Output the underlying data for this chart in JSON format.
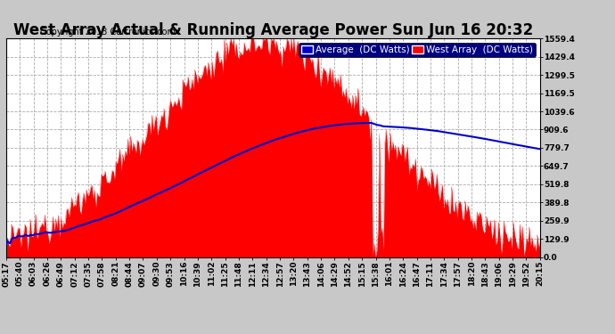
{
  "title": "West Array Actual & Running Average Power Sun Jun 16 20:32",
  "copyright": "Copyright 2013 Cartronics.com",
  "y_ticks": [
    0.0,
    129.9,
    259.9,
    389.8,
    519.8,
    649.7,
    779.7,
    909.6,
    1039.6,
    1169.5,
    1299.5,
    1429.4,
    1559.4
  ],
  "y_max": 1559.4,
  "y_min": 0.0,
  "x_labels": [
    "05:17",
    "05:40",
    "06:03",
    "06:26",
    "06:49",
    "07:12",
    "07:35",
    "07:58",
    "08:21",
    "08:44",
    "09:07",
    "09:30",
    "09:53",
    "10:16",
    "10:39",
    "11:02",
    "11:25",
    "11:48",
    "12:11",
    "12:34",
    "12:57",
    "13:20",
    "13:43",
    "14:06",
    "14:29",
    "14:52",
    "15:15",
    "15:38",
    "16:01",
    "16:24",
    "16:47",
    "17:11",
    "17:34",
    "17:57",
    "18:20",
    "18:43",
    "19:06",
    "19:29",
    "19:52",
    "20:15"
  ],
  "figure_bg_color": "#c8c8c8",
  "plot_bg_color": "#ffffff",
  "grid_color": "#aaaaaa",
  "bar_color": "#ff0000",
  "avg_color": "#0000cc",
  "legend_avg_bg": "#0000cc",
  "legend_bar_bg": "#ff0000",
  "title_fontsize": 12,
  "copyright_fontsize": 7,
  "tick_fontsize": 6.5,
  "legend_fontsize": 7.5
}
